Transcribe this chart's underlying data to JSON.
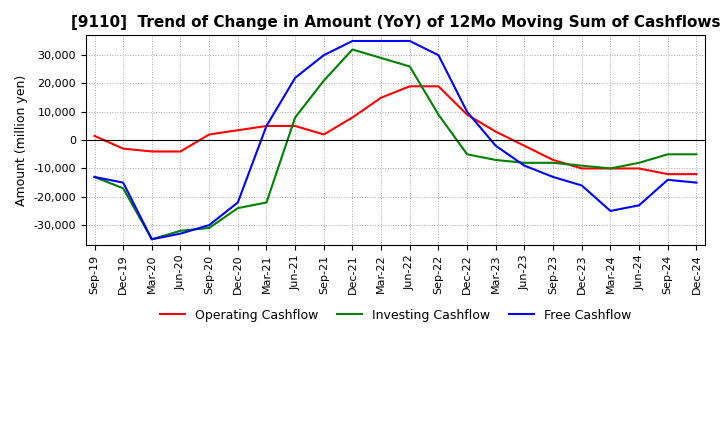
{
  "title": "[9110]  Trend of Change in Amount (YoY) of 12Mo Moving Sum of Cashflows",
  "ylabel": "Amount (million yen)",
  "x_labels": [
    "Sep-19",
    "Dec-19",
    "Mar-20",
    "Jun-20",
    "Sep-20",
    "Dec-20",
    "Mar-21",
    "Jun-21",
    "Sep-21",
    "Dec-21",
    "Mar-22",
    "Jun-22",
    "Sep-22",
    "Dec-22",
    "Mar-23",
    "Jun-23",
    "Sep-23",
    "Dec-23",
    "Mar-24",
    "Jun-24",
    "Sep-24",
    "Dec-24"
  ],
  "operating_cashflow": [
    1500,
    -3000,
    -4000,
    -4000,
    2000,
    3500,
    5000,
    5000,
    2000,
    8000,
    15000,
    19000,
    19000,
    9000,
    3000,
    -2000,
    -7000,
    -10000,
    -10000,
    -10000,
    -12000,
    -12000
  ],
  "investing_cashflow": [
    -13000,
    -17000,
    -35000,
    -32000,
    -31000,
    -24000,
    -22000,
    8000,
    21000,
    32000,
    29000,
    26000,
    9000,
    -5000,
    -7000,
    -8000,
    -8000,
    -9000,
    -10000,
    -8000,
    -5000,
    -5000
  ],
  "free_cashflow": [
    -13000,
    -15000,
    -35000,
    -33000,
    -30000,
    -22000,
    5000,
    22000,
    30000,
    35000,
    35000,
    35000,
    30000,
    10000,
    -2000,
    -9000,
    -13000,
    -16000,
    -25000,
    -23000,
    -14000,
    -15000
  ],
  "operating_color": "#ff0000",
  "investing_color": "#008000",
  "free_color": "#0000ff",
  "ylim": [
    -37000,
    37000
  ],
  "yticks": [
    -30000,
    -20000,
    -10000,
    0,
    10000,
    20000,
    30000
  ],
  "background_color": "#ffffff",
  "grid_color": "#aaaaaa",
  "title_fontsize": 11,
  "axis_fontsize": 9,
  "tick_fontsize": 8,
  "legend_fontsize": 9
}
